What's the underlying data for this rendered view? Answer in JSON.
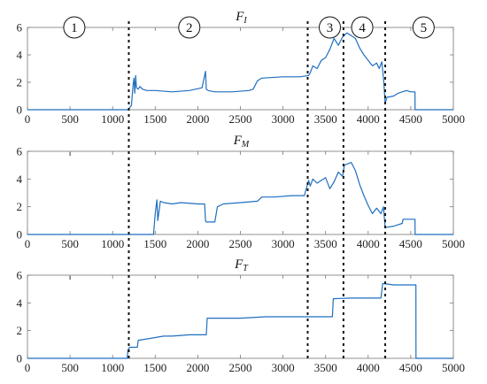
{
  "chart_data": [
    {
      "type": "line",
      "title_base": "F",
      "title_sub": "I",
      "xlim": [
        0,
        5000
      ],
      "ylim": [
        0,
        6
      ],
      "xticks": [
        0,
        500,
        1000,
        1500,
        2000,
        2500,
        3000,
        3500,
        4000,
        4500,
        5000
      ],
      "yticks": [
        0,
        2,
        4,
        6
      ],
      "series": [
        {
          "color": "#1f6fbf",
          "x": [
            0,
            1180,
            1220,
            1240,
            1250,
            1260,
            1270,
            1280,
            1300,
            1320,
            1350,
            1400,
            1500,
            1700,
            1900,
            2050,
            2090,
            2100,
            2120,
            2200,
            2400,
            2600,
            2650,
            2700,
            2750,
            3000,
            3200,
            3300,
            3320,
            3350,
            3400,
            3450,
            3500,
            3550,
            3600,
            3650,
            3700,
            3750,
            3800,
            3850,
            3900,
            3950,
            4000,
            4050,
            4100,
            4130,
            4160,
            4180,
            4200,
            4220,
            4300,
            4350,
            4400,
            4450,
            4500,
            4550,
            4551,
            5000
          ],
          "y": [
            0,
            0,
            0.3,
            1.8,
            2.3,
            1.2,
            2.5,
            1.6,
            1.5,
            1.7,
            1.5,
            1.4,
            1.4,
            1.3,
            1.4,
            1.6,
            2.8,
            1.5,
            1.4,
            1.3,
            1.3,
            1.4,
            1.5,
            2.1,
            2.3,
            2.4,
            2.4,
            2.5,
            2.7,
            3.2,
            3.0,
            3.6,
            3.8,
            4.4,
            5.2,
            4.7,
            5.3,
            5.6,
            5.4,
            5.2,
            4.5,
            4.0,
            3.6,
            3.2,
            3.4,
            3.0,
            3.5,
            2.3,
            0.5,
            0.9,
            1.0,
            1.2,
            1.3,
            1.4,
            1.3,
            1.3,
            0,
            0
          ]
        }
      ]
    },
    {
      "type": "line",
      "title_base": "F",
      "title_sub": "M",
      "xlim": [
        0,
        5000
      ],
      "ylim": [
        0,
        6
      ],
      "xticks": [
        0,
        500,
        1000,
        1500,
        2000,
        2500,
        3000,
        3500,
        4000,
        4500,
        5000
      ],
      "yticks": [
        0,
        2,
        4,
        6
      ],
      "series": [
        {
          "color": "#1f6fbf",
          "x": [
            0,
            1480,
            1500,
            1520,
            1530,
            1560,
            1600,
            1700,
            1800,
            2000,
            2080,
            2090,
            2100,
            2200,
            2230,
            2300,
            2500,
            2700,
            2750,
            2900,
            3100,
            3250,
            3300,
            3320,
            3350,
            3400,
            3450,
            3500,
            3550,
            3600,
            3650,
            3700,
            3720,
            3800,
            3850,
            3900,
            3950,
            4000,
            4050,
            4100,
            4150,
            4180,
            4200,
            4300,
            4400,
            4410,
            4500,
            4550,
            4551,
            5000
          ],
          "y": [
            0,
            0,
            1.5,
            2.5,
            1.0,
            2.4,
            2.3,
            2.2,
            2.3,
            2.2,
            2.2,
            1.0,
            0.9,
            0.9,
            2.0,
            2.2,
            2.3,
            2.4,
            2.7,
            2.7,
            2.8,
            2.8,
            3.9,
            3.5,
            4.0,
            3.7,
            3.9,
            4.1,
            3.3,
            3.8,
            4.5,
            4.2,
            5.0,
            5.2,
            4.6,
            3.6,
            2.8,
            2.1,
            1.5,
            1.9,
            1.5,
            2.0,
            0.5,
            0.6,
            0.8,
            1.1,
            1.1,
            1.1,
            0,
            0
          ]
        }
      ]
    },
    {
      "type": "line",
      "title_base": "F",
      "title_sub": "T",
      "xlim": [
        0,
        5000
      ],
      "ylim": [
        0,
        6
      ],
      "xticks": [
        0,
        500,
        1000,
        1500,
        2000,
        2500,
        3000,
        3500,
        4000,
        4500,
        5000
      ],
      "yticks": [
        0,
        2,
        4,
        6
      ],
      "series": [
        {
          "color": "#1f6fbf",
          "x": [
            0,
            1170,
            1180,
            1200,
            1290,
            1300,
            1400,
            1500,
            1600,
            1700,
            1900,
            2100,
            2110,
            2500,
            2800,
            3000,
            3300,
            3580,
            3590,
            3800,
            4000,
            4150,
            4170,
            4300,
            4560,
            4561,
            5000
          ],
          "y": [
            0,
            0,
            0.6,
            0.8,
            0.8,
            1.3,
            1.4,
            1.5,
            1.6,
            1.6,
            1.7,
            1.7,
            2.9,
            2.9,
            3.0,
            3.0,
            3.0,
            3.0,
            4.3,
            4.35,
            4.35,
            4.35,
            5.4,
            5.3,
            5.3,
            0,
            0
          ]
        }
      ]
    }
  ],
  "phases": {
    "labels": [
      "1",
      "2",
      "3",
      "4",
      "5"
    ],
    "centers": [
      550,
      1900,
      3550,
      3930,
      4650
    ],
    "boundaries": [
      1190,
      3290,
      3710,
      4200
    ]
  },
  "colors": {
    "line": "#1f6fbf",
    "axis": "#777777",
    "divider": "#111111"
  }
}
